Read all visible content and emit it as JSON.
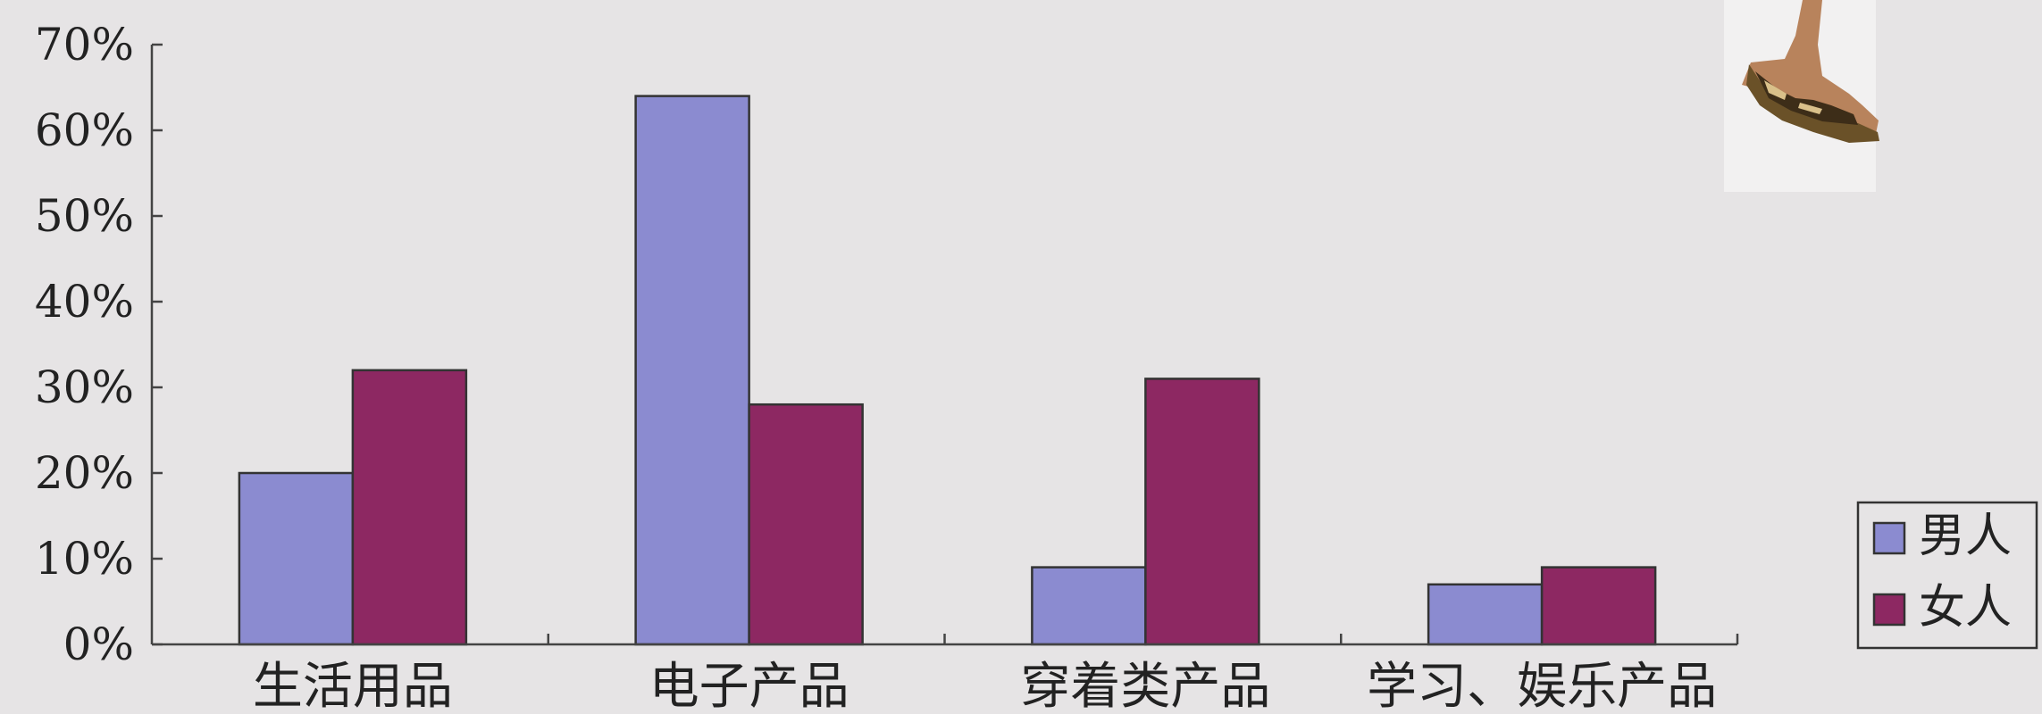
{
  "chart_data": {
    "type": "bar",
    "title": "",
    "xlabel": "",
    "ylabel": "",
    "categories": [
      "生活用品",
      "电子产品",
      "穿着类产品",
      "学习、娱乐产品"
    ],
    "series": [
      {
        "name": "男人",
        "color": "#8b8bd0",
        "values": [
          20,
          64,
          9,
          7
        ]
      },
      {
        "name": "女人",
        "color": "#8d2862",
        "values": [
          32,
          28,
          31,
          9
        ]
      }
    ],
    "ylim": [
      0,
      70
    ],
    "yticks": [
      0,
      10,
      20,
      30,
      40,
      50,
      60,
      70
    ],
    "ytick_labels": [
      "0%",
      "10%",
      "20%",
      "30%",
      "40%",
      "50%",
      "60%",
      "70%"
    ],
    "grid": false,
    "legend_position": "right"
  },
  "decoration": {
    "icon": "high-heel-shoe-photo"
  }
}
